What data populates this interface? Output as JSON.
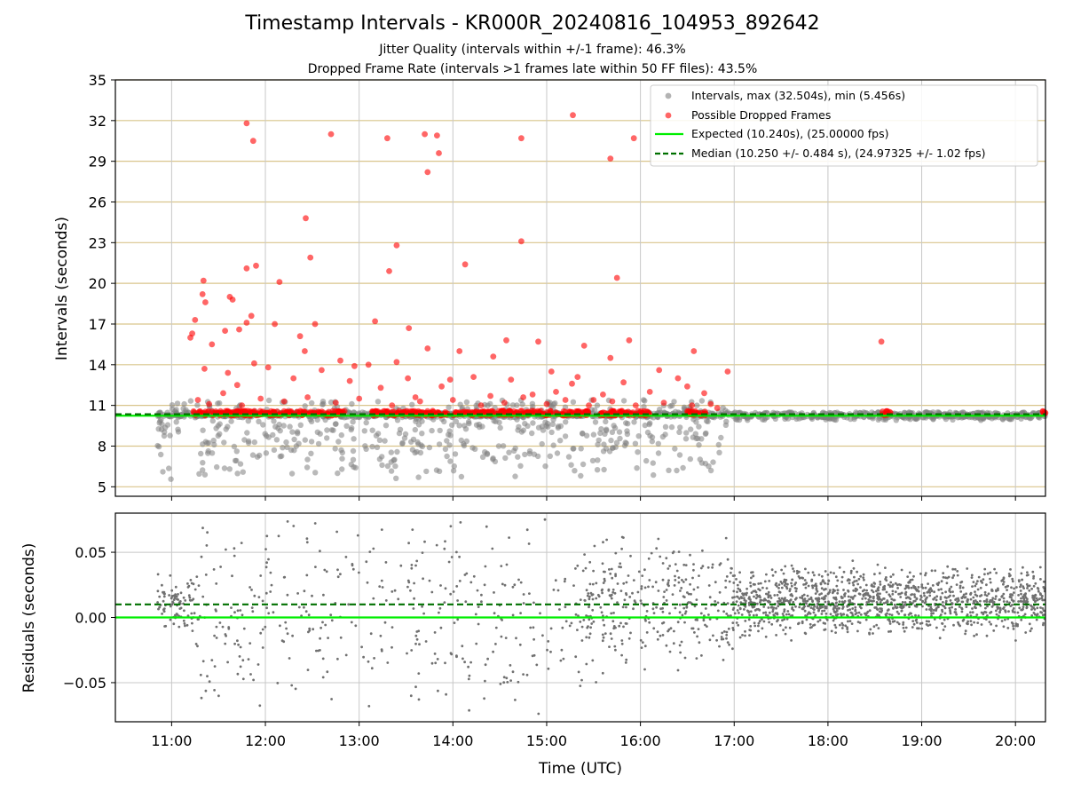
{
  "chart_data": [
    {
      "type": "scatter",
      "title": "Timestamp Intervals - KR000R_20240816_104953_892642",
      "subtitle_lines": [
        "Jitter Quality (intervals within +/-1 frame): 46.3%",
        "Dropped Frame Rate (intervals >1 frames late within 50 FF files): 43.5%"
      ],
      "ylabel": "Intervals (seconds)",
      "xlim_hours": [
        10.4,
        20.32
      ],
      "ylim": [
        4.3,
        35
      ],
      "yticks": [
        5,
        8,
        11,
        14,
        17,
        20,
        23,
        26,
        29,
        32,
        35
      ],
      "ytick_labels": [
        "5",
        "8",
        "11",
        "14",
        "17",
        "20",
        "23",
        "26",
        "29",
        "32",
        "35"
      ],
      "grid": true,
      "legend_position": "top-right",
      "legend": [
        "Intervals, max (32.504s), min (5.456s)",
        "Possible Dropped Frames",
        "Expected (10.240s), (25.00000 fps)",
        "Median (10.250 +/- 0.484 s), (24.97325 +/- 1.02 fps)"
      ],
      "lines": {
        "expected": 10.24,
        "median": 10.25
      },
      "colors": {
        "intervals": "#808080",
        "dropped": "#ff0000",
        "expected": "#00ee00",
        "median": "#007000",
        "hgrid": "#d9c58c",
        "vgrid": "#c8c8c8"
      },
      "series": [
        {
          "name": "Possible Dropped Frames",
          "points": [
            [
              11.8,
              31.8
            ],
            [
              11.87,
              30.5
            ],
            [
              12.7,
              31.0
            ],
            [
              13.3,
              30.7
            ],
            [
              13.7,
              31.0
            ],
            [
              13.83,
              30.9
            ],
            [
              13.85,
              29.6
            ],
            [
              13.73,
              28.2
            ],
            [
              14.73,
              30.7
            ],
            [
              15.28,
              32.4
            ],
            [
              15.68,
              29.2
            ],
            [
              15.93,
              30.7
            ],
            [
              12.43,
              24.8
            ],
            [
              12.48,
              21.9
            ],
            [
              13.4,
              22.8
            ],
            [
              13.32,
              20.9
            ],
            [
              14.13,
              21.4
            ],
            [
              14.73,
              23.1
            ],
            [
              11.8,
              21.1
            ],
            [
              11.9,
              21.3
            ],
            [
              12.15,
              20.1
            ],
            [
              15.75,
              20.4
            ],
            [
              11.34,
              20.2
            ],
            [
              11.33,
              19.2
            ],
            [
              11.36,
              18.6
            ],
            [
              11.25,
              17.3
            ],
            [
              11.62,
              19.0
            ],
            [
              11.65,
              18.8
            ],
            [
              11.8,
              17.1
            ],
            [
              11.85,
              17.6
            ],
            [
              11.22,
              16.3
            ],
            [
              11.43,
              15.5
            ],
            [
              11.57,
              16.5
            ],
            [
              11.72,
              16.6
            ],
            [
              12.1,
              17.0
            ],
            [
              12.37,
              16.1
            ],
            [
              12.53,
              17.0
            ],
            [
              13.17,
              17.2
            ],
            [
              13.53,
              16.7
            ],
            [
              11.2,
              16.0
            ],
            [
              12.42,
              15.0
            ],
            [
              12.8,
              14.3
            ],
            [
              13.4,
              14.2
            ],
            [
              13.73,
              15.2
            ],
            [
              14.07,
              15.0
            ],
            [
              14.57,
              15.8
            ],
            [
              14.91,
              15.7
            ],
            [
              15.4,
              15.4
            ],
            [
              15.88,
              15.8
            ],
            [
              16.57,
              15.0
            ],
            [
              18.57,
              15.7
            ],
            [
              14.43,
              14.6
            ],
            [
              15.68,
              14.5
            ],
            [
              16.93,
              13.5
            ],
            [
              12.9,
              12.8
            ],
            [
              13.88,
              12.4
            ],
            [
              15.27,
              12.6
            ],
            [
              16.5,
              12.4
            ],
            [
              11.35,
              13.7
            ],
            [
              11.6,
              13.4
            ],
            [
              11.7,
              12.5
            ],
            [
              11.88,
              14.1
            ],
            [
              12.03,
              13.8
            ],
            [
              12.3,
              13.0
            ],
            [
              12.6,
              13.6
            ],
            [
              12.95,
              13.9
            ],
            [
              13.1,
              14.0
            ],
            [
              13.23,
              12.3
            ],
            [
              13.52,
              13.0
            ],
            [
              13.6,
              11.6
            ],
            [
              13.97,
              12.9
            ],
            [
              14.22,
              13.1
            ],
            [
              14.4,
              11.7
            ],
            [
              14.62,
              12.9
            ],
            [
              14.85,
              11.8
            ],
            [
              15.05,
              13.5
            ],
            [
              15.1,
              12.0
            ],
            [
              15.33,
              13.1
            ],
            [
              15.5,
              11.4
            ],
            [
              15.6,
              11.8
            ],
            [
              15.82,
              12.7
            ],
            [
              16.1,
              12.0
            ],
            [
              16.2,
              13.6
            ],
            [
              16.4,
              13.0
            ],
            [
              16.68,
              11.9
            ],
            [
              16.75,
              11.1
            ],
            [
              11.28,
              11.4
            ],
            [
              11.4,
              11.1
            ],
            [
              11.55,
              11.9
            ],
            [
              11.75,
              11.0
            ],
            [
              11.95,
              11.5
            ],
            [
              12.2,
              11.3
            ],
            [
              12.45,
              11.6
            ],
            [
              12.75,
              11.2
            ],
            [
              13.0,
              11.5
            ],
            [
              13.35,
              11.0
            ],
            [
              13.65,
              11.3
            ],
            [
              14.0,
              11.4
            ],
            [
              14.3,
              11.0
            ],
            [
              14.55,
              11.2
            ],
            [
              14.75,
              11.6
            ],
            [
              15.0,
              11.1
            ],
            [
              15.2,
              11.4
            ],
            [
              15.45,
              11.0
            ],
            [
              15.7,
              11.3
            ],
            [
              15.95,
              11.0
            ],
            [
              16.25,
              11.2
            ],
            [
              16.55,
              11.0
            ],
            [
              16.82,
              10.8
            ]
          ]
        }
      ],
      "dropped_baseline_bands": [
        [
          11.22,
          12.85
        ],
        [
          13.13,
          13.95
        ],
        [
          14.0,
          14.55
        ],
        [
          14.52,
          15.05
        ],
        [
          15.1,
          15.45
        ],
        [
          15.55,
          16.1
        ],
        [
          16.5,
          16.7
        ],
        [
          18.57,
          18.67
        ],
        [
          20.28,
          20.32
        ]
      ],
      "interval_distribution": [
        {
          "from": 10.85,
          "to": 16.95,
          "below_min": 5.5,
          "below_max": 10.0,
          "above_max": 11.4
        },
        {
          "from": 16.95,
          "to": 20.32,
          "below_min": 9.9,
          "below_max": 10.2,
          "above_max": 10.5
        }
      ]
    },
    {
      "type": "scatter",
      "ylabel": "Residuals (seconds)",
      "xlabel": "Time (UTC)",
      "xlim_hours": [
        10.4,
        20.32
      ],
      "ylim": [
        -0.08,
        0.08
      ],
      "yticks": [
        -0.05,
        0.0,
        0.05
      ],
      "ytick_labels": [
        "−0.05",
        "0.00",
        "0.05"
      ],
      "xticks_hours": [
        11,
        12,
        13,
        14,
        15,
        16,
        17,
        18,
        19,
        20
      ],
      "xtick_labels": [
        "11:00",
        "12:00",
        "13:00",
        "14:00",
        "15:00",
        "16:00",
        "17:00",
        "18:00",
        "19:00",
        "20:00"
      ],
      "grid": true,
      "lines": {
        "expected": 0.0,
        "median": 0.01
      },
      "residual_density": [
        {
          "from": 10.85,
          "to": 11.25,
          "mean": 0.012,
          "spread": 0.022,
          "count": 90
        },
        {
          "from": 11.25,
          "to": 15.4,
          "mean": 0.0,
          "spread": 0.075,
          "count": 380
        },
        {
          "from": 15.4,
          "to": 17.0,
          "mean": 0.01,
          "spread": 0.05,
          "count": 330
        },
        {
          "from": 17.0,
          "to": 20.32,
          "mean": 0.012,
          "spread": 0.026,
          "count": 1300
        }
      ]
    }
  ]
}
